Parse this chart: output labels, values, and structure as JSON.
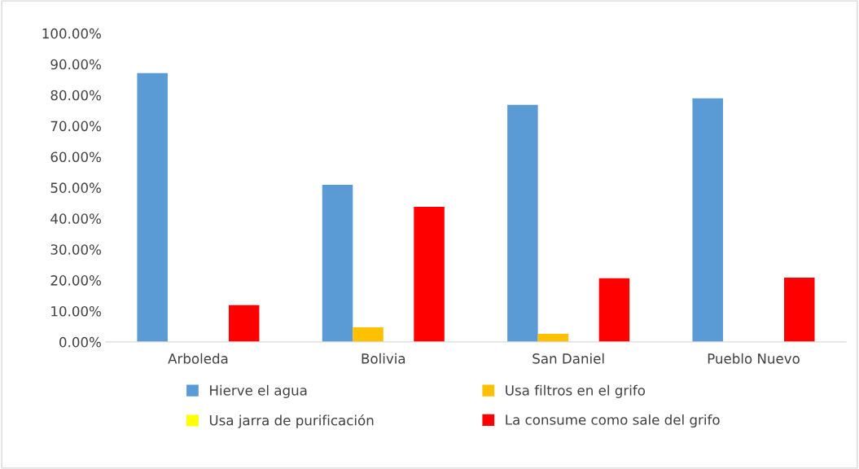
{
  "chart_data": {
    "type": "bar",
    "categories": [
      "Arboleda",
      "Bolivia",
      "San Daniel",
      "Pueblo Nuevo"
    ],
    "series": [
      {
        "name": "Hierve el agua",
        "color": "#5b9bd5",
        "values": [
          87.1,
          50.9,
          76.8,
          78.9
        ]
      },
      {
        "name": "Usa filtros en el grifo",
        "color": "#ffc000",
        "values": [
          0,
          4.7,
          2.6,
          0
        ]
      },
      {
        "name": "Usa jarra de purificación",
        "color": "#ffff00",
        "values": [
          0,
          0,
          0,
          0
        ]
      },
      {
        "name": "La consume como sale del grifo",
        "color": "#ff0000",
        "values": [
          11.9,
          43.8,
          20.6,
          20.8
        ]
      }
    ],
    "ylim": [
      0,
      100
    ],
    "yticks": [
      {
        "value": 0,
        "label": "0.00%"
      },
      {
        "value": 10,
        "label": "10.00%"
      },
      {
        "value": 20,
        "label": "20.00%"
      },
      {
        "value": 30,
        "label": "30.00%"
      },
      {
        "value": 40,
        "label": "40.00%"
      },
      {
        "value": 50,
        "label": "50.00%"
      },
      {
        "value": 60,
        "label": "60.00%"
      },
      {
        "value": 70,
        "label": "70.00%"
      },
      {
        "value": 80,
        "label": "80.00%"
      },
      {
        "value": 90,
        "label": "90.00%"
      },
      {
        "value": 100,
        "label": "100.00%"
      }
    ],
    "grid": false,
    "legend": "bottom"
  }
}
